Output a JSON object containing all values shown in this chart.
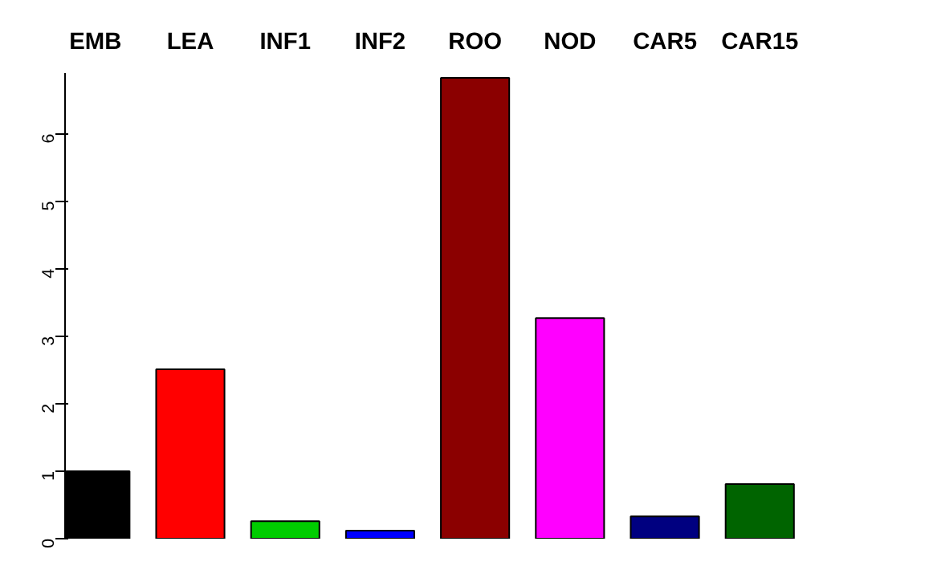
{
  "chart_data": {
    "type": "bar",
    "categories": [
      "EMB",
      "LEA",
      "INF1",
      "INF2",
      "ROO",
      "NOD",
      "CAR5",
      "CAR15"
    ],
    "values": [
      1.0,
      2.51,
      0.26,
      0.12,
      6.83,
      3.27,
      0.33,
      0.81
    ],
    "colors": [
      "#000000",
      "#ff0000",
      "#00cd00",
      "#0000ff",
      "#8b0000",
      "#ff00ff",
      "#000080",
      "#006400"
    ],
    "ylim": [
      0,
      6.9
    ],
    "yticks": [
      0,
      1,
      2,
      3,
      4,
      5,
      6
    ],
    "grid": false
  }
}
